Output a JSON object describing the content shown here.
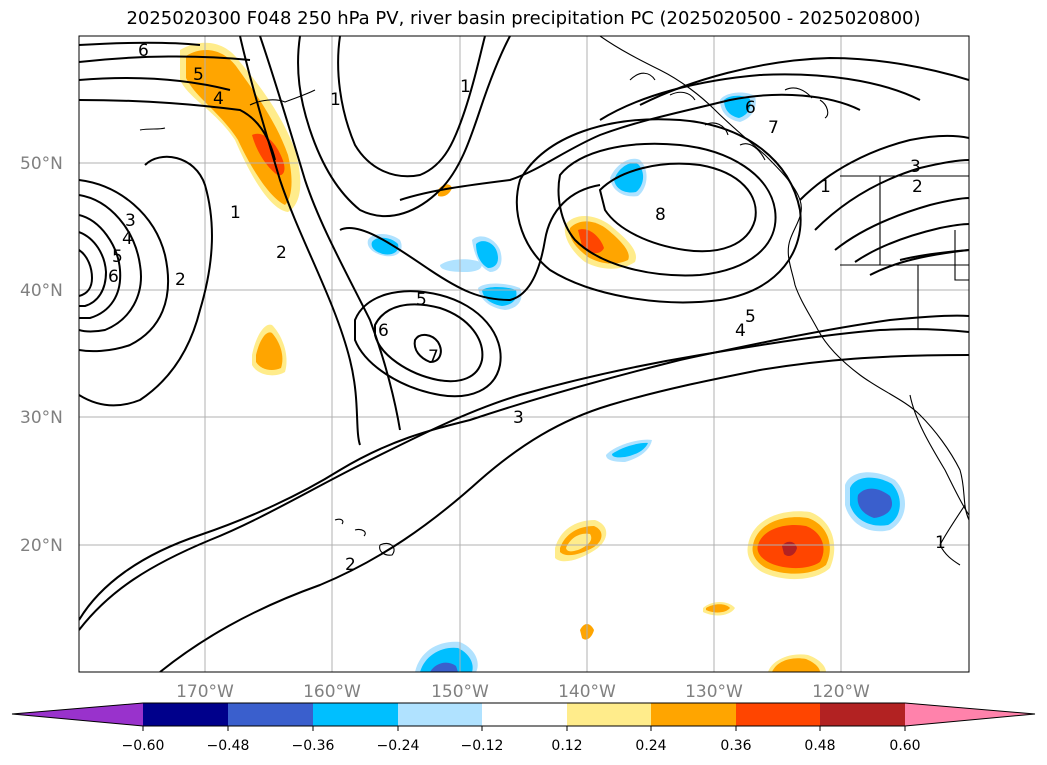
{
  "title": "2025020300 F048 250 hPa PV, river basin precipitation PC (2025020500 - 2025020800)",
  "map": {
    "lon_labels": [
      "170°W",
      "160°W",
      "150°W",
      "140°W",
      "130°W",
      "120°W"
    ],
    "lat_labels": [
      "50°N",
      "40°N",
      "30°N",
      "20°N"
    ],
    "contour_labels": [
      "6",
      "5",
      "4",
      "1",
      "1",
      "2",
      "3",
      "4",
      "5",
      "6",
      "2",
      "2",
      "1",
      "5",
      "6",
      "7",
      "3",
      "6",
      "7",
      "8",
      "5",
      "4",
      "3",
      "2",
      "1",
      "1"
    ]
  },
  "colorbar": {
    "ticks": [
      "−0.60",
      "−0.48",
      "−0.36",
      "−0.24",
      "−0.12",
      "0.12",
      "0.24",
      "0.36",
      "0.48",
      "0.60"
    ],
    "colors": [
      "#9932cc",
      "#00008b",
      "#3a5fcd",
      "#00bfff",
      "#b0e2ff",
      "#ffffff",
      "#ffec8b",
      "#ffa500",
      "#ff4500",
      "#b22222",
      "#ff82ab"
    ]
  }
}
